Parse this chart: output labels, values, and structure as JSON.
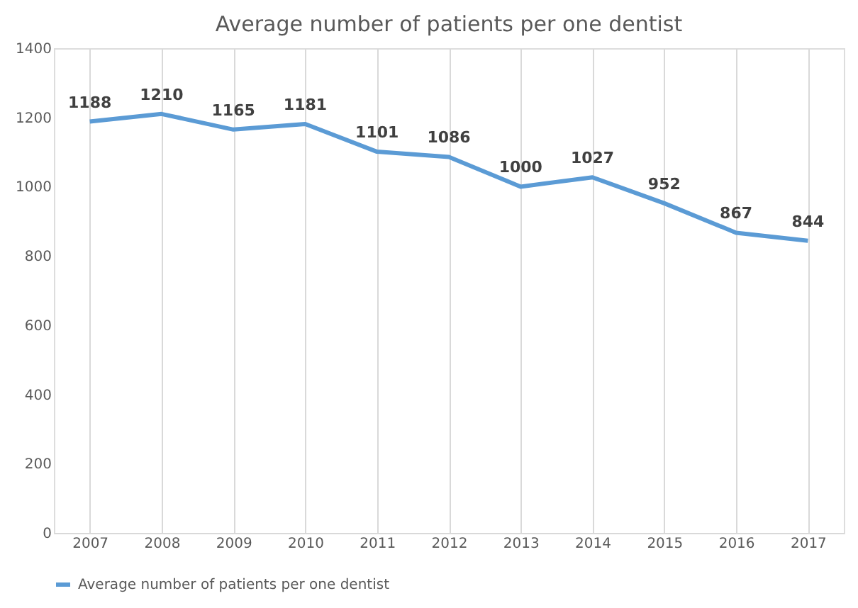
{
  "chart_data": {
    "type": "line",
    "title": "Average number of patients per one dentist",
    "categories": [
      "2007",
      "2008",
      "2009",
      "2010",
      "2011",
      "2012",
      "2013",
      "2014",
      "2015",
      "2016",
      "2017"
    ],
    "series": [
      {
        "name": "Average number of patients per one dentist",
        "color": "#5b9bd5",
        "values": [
          1188,
          1210,
          1165,
          1181,
          1101,
          1086,
          1000,
          1027,
          952,
          867,
          844
        ]
      }
    ],
    "ylim": [
      0,
      1400
    ],
    "yticks": [
      0,
      200,
      400,
      600,
      800,
      1000,
      1200,
      1400
    ],
    "grid": "x",
    "legend": "bottom",
    "data_labels": true,
    "marker": "none",
    "line_style": "solid"
  }
}
